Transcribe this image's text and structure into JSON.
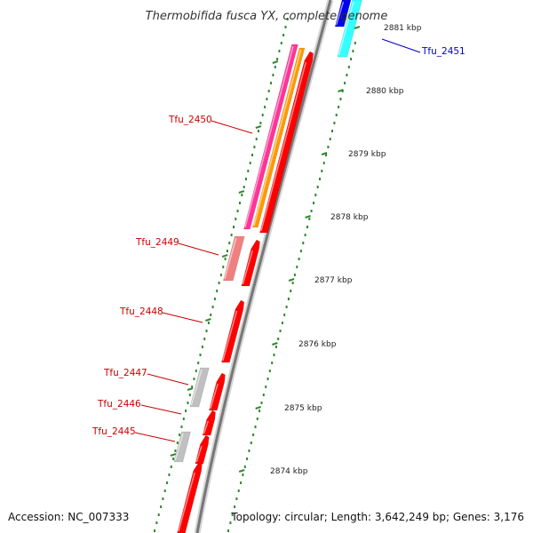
{
  "title": "Thermobifida fusca YX, complete genome",
  "footer": {
    "accession": "Accession: NC_007333",
    "info": "Topology: circular; Length: 3,642,249 bp; Genes: 3,176"
  },
  "colors": {
    "backbone": "#7a7a7a",
    "tick": "#2e8b2e",
    "forward_cds": "#ff0000",
    "forward_label": "#cc0000",
    "reverse_label": "#0000cc",
    "pink": "#ff3399",
    "orange": "#ff9900",
    "salmon": "#f08080",
    "grey": "#c0c0c0",
    "blue": "#0000ee",
    "cyan": "#33ffff"
  },
  "scale": {
    "ticks": [
      {
        "label": "2874 kbp"
      },
      {
        "label": "2875 kbp"
      },
      {
        "label": "2876 kbp"
      },
      {
        "label": "2877 kbp"
      },
      {
        "label": "2878 kbp"
      },
      {
        "label": "2879 kbp"
      },
      {
        "label": "2880 kbp"
      },
      {
        "label": "2881 kbp"
      }
    ]
  },
  "gene_labels": [
    {
      "name": "Tfu_2451",
      "strand": "reverse"
    },
    {
      "name": "Tfu_2450",
      "strand": "forward"
    },
    {
      "name": "Tfu_2449",
      "strand": "forward"
    },
    {
      "name": "Tfu_2448",
      "strand": "forward"
    },
    {
      "name": "Tfu_2447",
      "strand": "forward"
    },
    {
      "name": "Tfu_2446",
      "strand": "forward"
    },
    {
      "name": "Tfu_2445",
      "strand": "forward"
    }
  ]
}
